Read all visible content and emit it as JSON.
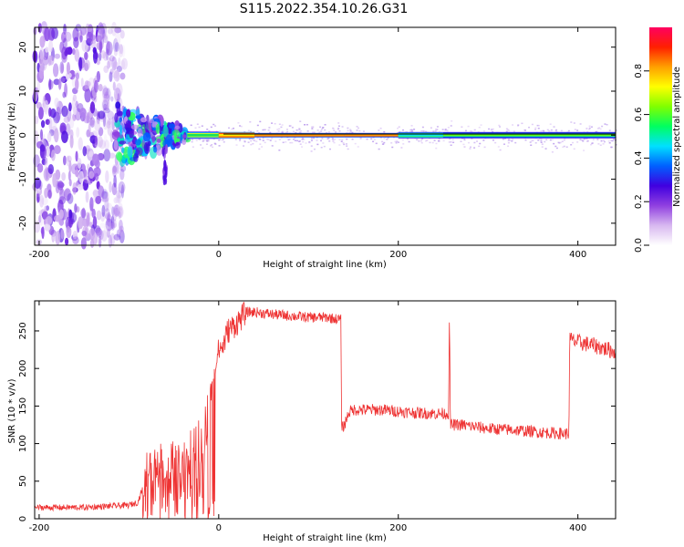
{
  "title": "S115.2022.354.10.26.G31",
  "chart_data": [
    {
      "type": "heatmap",
      "xlabel": "Height of straight line (km)",
      "ylabel": "Frequency (Hz)",
      "xlim": [
        -205,
        442
      ],
      "ylim": [
        -25,
        24.5
      ],
      "xticks": [
        -200,
        0,
        200,
        400
      ],
      "yticks": [
        -20,
        -10,
        0,
        10,
        20
      ],
      "colorbar": {
        "label": "Normalized spectral amplitude",
        "range": [
          0,
          1
        ],
        "ticks": [
          0.0,
          0.2,
          0.4,
          0.6,
          0.8
        ],
        "colormap": [
          "#ffffff",
          "#d8b8f0",
          "#9040e0",
          "#4000e0",
          "#0060ff",
          "#00e0ff",
          "#00ff60",
          "#80ff00",
          "#ffff00",
          "#ffa000",
          "#ff2000",
          "#ff0060"
        ]
      },
      "features": {
        "zero_frequency_line": 0,
        "broadband_noise_region_km": [
          -205,
          -115
        ],
        "turbulent_region_km": [
          -115,
          -35
        ],
        "narrow_line_region_km": [
          -35,
          442
        ],
        "spread_hz_narrow": 2
      }
    },
    {
      "type": "line",
      "xlabel": "Height of straight line (km)",
      "ylabel": "SNR (10 * v/v)",
      "xlim": [
        -205,
        442
      ],
      "ylim": [
        0,
        290
      ],
      "xticks": [
        -200,
        0,
        200,
        400
      ],
      "yticks": [
        0,
        50,
        100,
        150,
        200,
        250
      ],
      "series": [
        {
          "color": "#ee3333",
          "x": [
            -205,
            -150,
            -100,
            -90,
            -85,
            -80,
            -75,
            -70,
            -60,
            -50,
            -40,
            -30,
            -20,
            -15,
            -10,
            -5,
            0,
            5,
            10,
            20,
            30,
            40,
            60,
            80,
            100,
            120,
            136,
            137,
            140,
            145,
            150,
            160,
            180,
            200,
            220,
            240,
            256,
            257,
            258,
            260,
            270,
            300,
            330,
            360,
            390,
            391,
            392,
            400,
            420,
            442
          ],
          "y": [
            15,
            15,
            18,
            22,
            40,
            65,
            70,
            72,
            75,
            80,
            72,
            85,
            100,
            115,
            160,
            190,
            225,
            230,
            250,
            260,
            275,
            275,
            272,
            270,
            268,
            268,
            265,
            120,
            125,
            142,
            145,
            145,
            145,
            143,
            141,
            140,
            140,
            272,
            125,
            125,
            125,
            120,
            118,
            115,
            113,
            240,
            238,
            235,
            230,
            222
          ]
        }
      ]
    }
  ]
}
